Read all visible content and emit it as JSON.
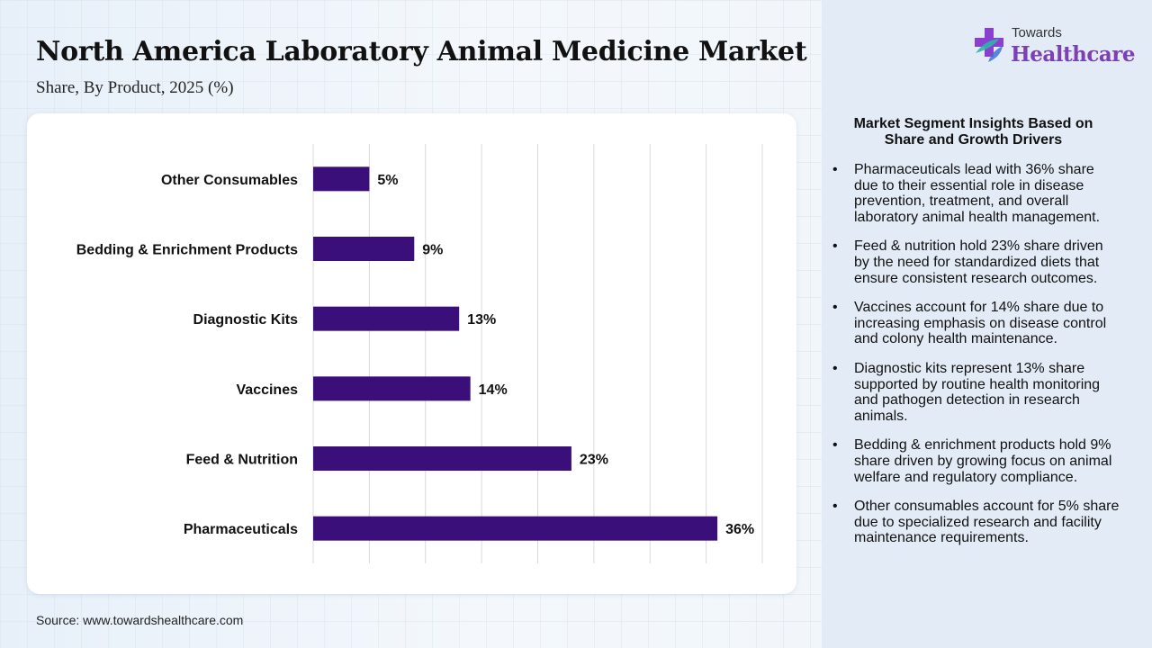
{
  "header": {
    "title": "North America Laboratory Animal Medicine Market",
    "subtitle": "Share, By Product, 2025 (%)"
  },
  "chart_data": {
    "type": "bar",
    "orientation": "horizontal",
    "categories": [
      "Other Consumables",
      "Bedding & Enrichment Products",
      "Diagnostic Kits",
      "Vaccines",
      "Feed & Nutrition",
      "Pharmaceuticals"
    ],
    "values": [
      5,
      9,
      13,
      14,
      23,
      36
    ],
    "data_labels": [
      "5%",
      "9%",
      "13%",
      "14%",
      "23%",
      "36%"
    ],
    "xlim": [
      0,
      40
    ],
    "grid": "vertical",
    "bar_color": "#3b0f7a"
  },
  "source": "Source: www.towardshealthcare.com",
  "logo": {
    "small_text": "Towards",
    "big_text": "Healthcare",
    "icon": "cross-logo-icon"
  },
  "insights": {
    "title": "Market Segment Insights Based on Share and Growth Drivers",
    "items": [
      "Pharmaceuticals lead with 36% share due to their essential role in disease prevention, treatment, and overall laboratory animal health management.",
      "Feed & nutrition hold 23% share driven by the need for standardized diets that ensure consistent research outcomes.",
      "Vaccines account for 14% share due to increasing emphasis on disease control and colony health maintenance.",
      "Diagnostic kits represent 13% share supported by routine health monitoring and pathogen detection in research animals.",
      "Bedding & enrichment products hold 9% share driven by growing focus on animal welfare and regulatory compliance.",
      "Other consumables account for 5% share due to specialized research and facility maintenance requirements."
    ]
  },
  "colors": {
    "accent": "#7b3fb8",
    "logo_cross": "#8a3fd1",
    "logo_cross_secondary": "#2db5a8",
    "panel": "#e3ecf6"
  }
}
